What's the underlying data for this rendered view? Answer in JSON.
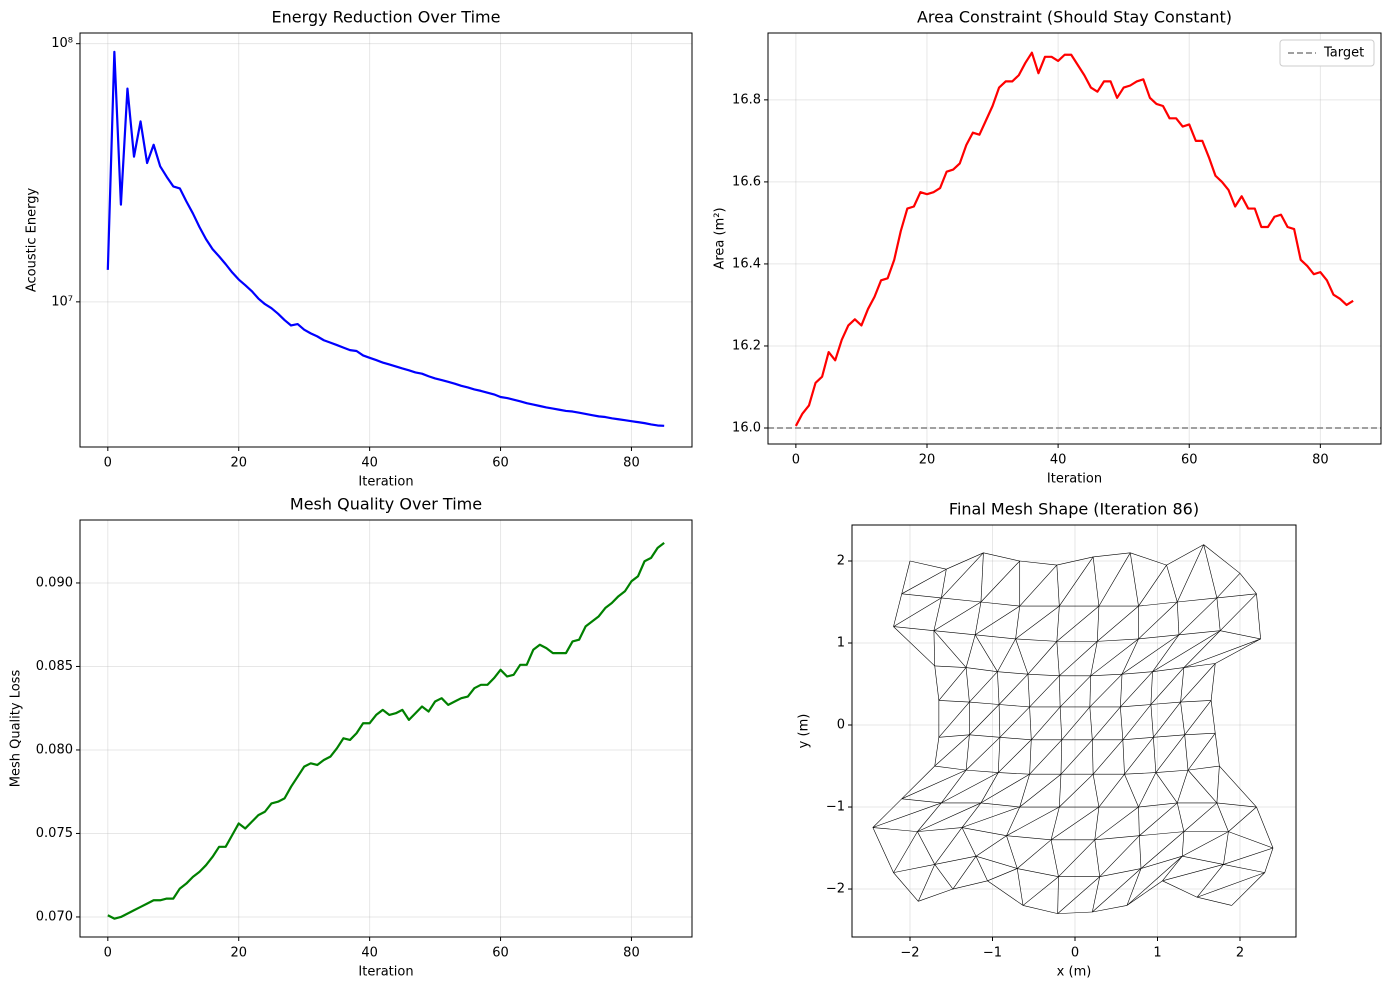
{
  "chart_data": [
    {
      "type": "line",
      "title": "Energy Reduction Over Time",
      "x_label": "Iteration",
      "y_label": "Acoustic Energy",
      "log_y": true,
      "grid": true,
      "xlim": [
        -4.25,
        89.25
      ],
      "xticks": [
        0,
        20,
        40,
        60,
        80
      ],
      "ylim": [
        2740000.0,
        110000000.0
      ],
      "yticks": [
        {
          "value": 10000000.0,
          "label": "10⁷"
        },
        {
          "value": 100000000.0,
          "label": "10⁸"
        }
      ],
      "x": [
        0,
        1,
        2,
        3,
        4,
        5,
        6,
        7,
        8,
        9,
        10,
        11,
        12,
        13,
        14,
        15,
        16,
        17,
        18,
        19,
        20,
        21,
        22,
        23,
        24,
        25,
        26,
        27,
        28,
        29,
        30,
        31,
        32,
        33,
        34,
        35,
        36,
        37,
        38,
        39,
        40,
        41,
        42,
        43,
        44,
        45,
        46,
        47,
        48,
        49,
        50,
        51,
        52,
        53,
        54,
        55,
        56,
        57,
        58,
        59,
        60,
        61,
        62,
        63,
        64,
        65,
        66,
        67,
        68,
        69,
        70,
        71,
        72,
        73,
        74,
        75,
        76,
        77,
        78,
        79,
        80,
        81,
        82,
        83,
        84,
        85
      ],
      "series": [
        {
          "color": "#0000ff",
          "values": [
            13300000.0,
            93000000.0,
            23800000.0,
            67000000.0,
            36500000.0,
            50000000.0,
            34500000.0,
            40600000.0,
            33500000.0,
            30500000.0,
            28000000.0,
            27500000.0,
            24500000.0,
            22000000.0,
            19500000.0,
            17500000.0,
            16000000.0,
            15000000.0,
            14000000.0,
            13000000.0,
            12200000.0,
            11600000.0,
            11000000.0,
            10300000.0,
            9800000.0,
            9450000.0,
            9000000.0,
            8500000.0,
            8100000.0,
            8200000.0,
            7800000.0,
            7550000.0,
            7350000.0,
            7100000.0,
            6950000.0,
            6800000.0,
            6650000.0,
            6500000.0,
            6450000.0,
            6200000.0,
            6070000.0,
            5950000.0,
            5820000.0,
            5720000.0,
            5620000.0,
            5520000.0,
            5430000.0,
            5330000.0,
            5270000.0,
            5150000.0,
            5050000.0,
            4980000.0,
            4900000.0,
            4820000.0,
            4730000.0,
            4660000.0,
            4580000.0,
            4520000.0,
            4450000.0,
            4380000.0,
            4280000.0,
            4240000.0,
            4180000.0,
            4120000.0,
            4050000.0,
            4000000.0,
            3950000.0,
            3900000.0,
            3860000.0,
            3820000.0,
            3780000.0,
            3760000.0,
            3720000.0,
            3680000.0,
            3640000.0,
            3600000.0,
            3580000.0,
            3540000.0,
            3510000.0,
            3480000.0,
            3450000.0,
            3420000.0,
            3390000.0,
            3350000.0,
            3320000.0,
            3310000.0
          ]
        }
      ]
    },
    {
      "type": "line",
      "title": "Area Constraint (Should Stay Constant)",
      "x_label": "Iteration",
      "y_label": "Area (m²)",
      "grid": true,
      "legend": "upper right",
      "xlim": [
        -4.25,
        89.25
      ],
      "xticks": [
        0,
        20,
        40,
        60,
        80
      ],
      "ylim": [
        15.961,
        16.963
      ],
      "yticks": [
        {
          "value": 16,
          "label": "16.0"
        },
        16.2,
        16.4,
        16.6,
        16.8
      ],
      "reference": {
        "name": "Target",
        "value": 16,
        "color": "#808080"
      },
      "x": [
        0,
        1,
        2,
        3,
        4,
        5,
        6,
        7,
        8,
        9,
        10,
        11,
        12,
        13,
        14,
        15,
        16,
        17,
        18,
        19,
        20,
        21,
        22,
        23,
        24,
        25,
        26,
        27,
        28,
        29,
        30,
        31,
        32,
        33,
        34,
        35,
        36,
        37,
        38,
        39,
        40,
        41,
        42,
        43,
        44,
        45,
        46,
        47,
        48,
        49,
        50,
        51,
        52,
        53,
        54,
        55,
        56,
        57,
        58,
        59,
        60,
        61,
        62,
        63,
        64,
        65,
        66,
        67,
        68,
        69,
        70,
        71,
        72,
        73,
        74,
        75,
        76,
        77,
        78,
        79,
        80,
        81,
        82,
        83,
        84,
        85
      ],
      "series": [
        {
          "color": "#ff0000",
          "values": [
            16.005,
            16.035,
            16.055,
            16.11,
            16.125,
            16.185,
            16.165,
            16.215,
            16.25,
            16.265,
            16.25,
            16.29,
            16.32,
            16.36,
            16.365,
            16.41,
            16.48,
            16.535,
            16.54,
            16.575,
            16.57,
            16.575,
            16.585,
            16.625,
            16.63,
            16.645,
            16.69,
            16.72,
            16.715,
            16.75,
            16.785,
            16.83,
            16.845,
            16.845,
            16.86,
            16.89,
            16.915,
            16.865,
            16.905,
            16.905,
            16.895,
            16.91,
            16.91,
            16.885,
            16.86,
            16.83,
            16.82,
            16.845,
            16.845,
            16.805,
            16.83,
            16.835,
            16.845,
            16.85,
            16.805,
            16.79,
            16.785,
            16.755,
            16.755,
            16.735,
            16.74,
            16.7,
            16.7,
            16.66,
            16.615,
            16.6,
            16.58,
            16.54,
            16.565,
            16.535,
            16.535,
            16.49,
            16.49,
            16.515,
            16.52,
            16.49,
            16.485,
            16.41,
            16.395,
            16.375,
            16.38,
            16.36,
            16.325,
            16.315,
            16.3,
            16.31
          ]
        }
      ]
    },
    {
      "type": "line",
      "title": "Mesh Quality Over Time",
      "x_label": "Iteration",
      "y_label": "Mesh Quality Loss",
      "grid": true,
      "xlim": [
        -4.25,
        89.25
      ],
      "xticks": [
        0,
        20,
        40,
        60,
        80
      ],
      "ylim": [
        0.0688,
        0.09377
      ],
      "yticks": [
        {
          "value": 0.07,
          "label": "0.070"
        },
        0.075,
        {
          "value": 0.08,
          "label": "0.080"
        },
        0.085,
        {
          "value": 0.09,
          "label": "0.090"
        }
      ],
      "x": [
        0,
        1,
        2,
        3,
        4,
        5,
        6,
        7,
        8,
        9,
        10,
        11,
        12,
        13,
        14,
        15,
        16,
        17,
        18,
        19,
        20,
        21,
        22,
        23,
        24,
        25,
        26,
        27,
        28,
        29,
        30,
        31,
        32,
        33,
        34,
        35,
        36,
        37,
        38,
        39,
        40,
        41,
        42,
        43,
        44,
        45,
        46,
        47,
        48,
        49,
        50,
        51,
        52,
        53,
        54,
        55,
        56,
        57,
        58,
        59,
        60,
        61,
        62,
        63,
        64,
        65,
        66,
        67,
        68,
        69,
        70,
        71,
        72,
        73,
        74,
        75,
        76,
        77,
        78,
        79,
        80,
        81,
        82,
        83,
        84,
        85
      ],
      "series": [
        {
          "color": "#008000",
          "values": [
            0.0701,
            0.0699,
            0.07,
            0.0702,
            0.0704,
            0.0706,
            0.0708,
            0.071,
            0.071,
            0.0711,
            0.0711,
            0.0717,
            0.072,
            0.0724,
            0.0727,
            0.0731,
            0.0736,
            0.0742,
            0.0742,
            0.0749,
            0.0756,
            0.0753,
            0.0757,
            0.0761,
            0.0763,
            0.0768,
            0.0769,
            0.0771,
            0.0778,
            0.0784,
            0.079,
            0.0792,
            0.0791,
            0.0794,
            0.0796,
            0.0801,
            0.0807,
            0.0806,
            0.081,
            0.0816,
            0.0816,
            0.0821,
            0.0824,
            0.0821,
            0.0822,
            0.0824,
            0.0818,
            0.0822,
            0.0826,
            0.0823,
            0.0829,
            0.0831,
            0.0827,
            0.0829,
            0.0831,
            0.0832,
            0.0837,
            0.0839,
            0.0839,
            0.0843,
            0.0848,
            0.0844,
            0.0845,
            0.0851,
            0.0851,
            0.086,
            0.0863,
            0.0861,
            0.0858,
            0.0858,
            0.0858,
            0.0865,
            0.0866,
            0.0874,
            0.0877,
            0.088,
            0.0885,
            0.0888,
            0.0892,
            0.0895,
            0.0901,
            0.0904,
            0.0913,
            0.0915,
            0.0921,
            0.0924
          ]
        }
      ]
    },
    {
      "type": "mesh",
      "title": "Final Mesh Shape (Iteration 86)",
      "x_label": "x (m)",
      "y_label": "y (m)",
      "grid": true,
      "color": "#000000",
      "xlim": [
        -2.703,
        2.679
      ],
      "xticks": [
        {
          "value": -2,
          "label": "−2"
        },
        {
          "value": -1,
          "label": "−1"
        },
        0,
        1,
        2
      ],
      "ylim": [
        -2.585,
        2.439
      ],
      "yticks": [
        {
          "value": -2,
          "label": "−2"
        },
        {
          "value": -1,
          "label": "−1"
        },
        0,
        1,
        2
      ],
      "mesh": {
        "x": [
          [
            -1.9,
            -1.48,
            -1.06,
            -0.63,
            -0.21,
            0.21,
            0.63,
            1.06,
            1.48,
            1.9
          ],
          [
            -2.2,
            -1.7,
            -1.2,
            -0.7,
            -0.2,
            0.3,
            0.8,
            1.3,
            1.8,
            2.3
          ],
          [
            -2.45,
            -1.91,
            -1.37,
            -0.83,
            -0.29,
            0.24,
            0.78,
            1.32,
            1.86,
            2.4
          ],
          [
            -2.1,
            -1.62,
            -1.14,
            -0.67,
            -0.19,
            0.29,
            0.77,
            1.24,
            1.72,
            2.2
          ],
          [
            -1.7,
            -1.32,
            -0.93,
            -0.55,
            -0.17,
            0.22,
            0.6,
            0.98,
            1.37,
            1.75
          ],
          [
            -1.65,
            -1.28,
            -0.91,
            -0.53,
            -0.16,
            0.21,
            0.58,
            0.95,
            1.33,
            1.7
          ],
          [
            -1.65,
            -1.28,
            -0.92,
            -0.55,
            -0.18,
            0.18,
            0.55,
            0.92,
            1.28,
            1.65
          ],
          [
            -1.7,
            -1.32,
            -0.94,
            -0.57,
            -0.19,
            0.19,
            0.57,
            0.94,
            1.32,
            1.7
          ],
          [
            -2.2,
            -1.71,
            -1.21,
            -0.72,
            -0.22,
            0.27,
            0.77,
            1.26,
            1.76,
            2.25
          ],
          [
            -2.1,
            -1.62,
            -1.14,
            -0.67,
            -0.19,
            0.29,
            0.77,
            1.24,
            1.72,
            2.2
          ],
          [
            -2.0,
            -1.56,
            -1.11,
            -0.67,
            -0.22,
            0.22,
            0.67,
            1.11,
            1.56,
            2.0
          ]
        ],
        "y": [
          [
            -2.15,
            -2.0,
            -1.9,
            -2.2,
            -2.3,
            -2.28,
            -2.2,
            -1.9,
            -2.1,
            -2.2
          ],
          [
            -1.8,
            -1.7,
            -1.6,
            -1.75,
            -1.85,
            -1.85,
            -1.75,
            -1.6,
            -1.7,
            -1.8
          ],
          [
            -1.25,
            -1.3,
            -1.25,
            -1.35,
            -1.4,
            -1.4,
            -1.35,
            -1.3,
            -1.3,
            -1.5
          ],
          [
            -0.9,
            -0.95,
            -0.95,
            -1.0,
            -1.0,
            -1.0,
            -1.0,
            -0.95,
            -0.95,
            -1.0
          ],
          [
            -0.5,
            -0.55,
            -0.58,
            -0.6,
            -0.6,
            -0.6,
            -0.6,
            -0.58,
            -0.55,
            -0.5
          ],
          [
            -0.15,
            -0.12,
            -0.15,
            -0.18,
            -0.18,
            -0.18,
            -0.18,
            -0.15,
            -0.12,
            -0.1
          ],
          [
            0.3,
            0.28,
            0.25,
            0.22,
            0.22,
            0.22,
            0.22,
            0.25,
            0.28,
            0.3
          ],
          [
            0.72,
            0.7,
            0.65,
            0.62,
            0.6,
            0.6,
            0.62,
            0.65,
            0.7,
            0.75
          ],
          [
            1.2,
            1.15,
            1.1,
            1.05,
            1.02,
            1.02,
            1.05,
            1.1,
            1.15,
            1.05
          ],
          [
            1.6,
            1.55,
            1.5,
            1.45,
            1.45,
            1.45,
            1.45,
            1.5,
            1.55,
            1.6
          ],
          [
            2.0,
            1.9,
            2.1,
            2.0,
            1.95,
            2.05,
            2.1,
            1.95,
            2.2,
            1.85
          ]
        ]
      }
    }
  ]
}
